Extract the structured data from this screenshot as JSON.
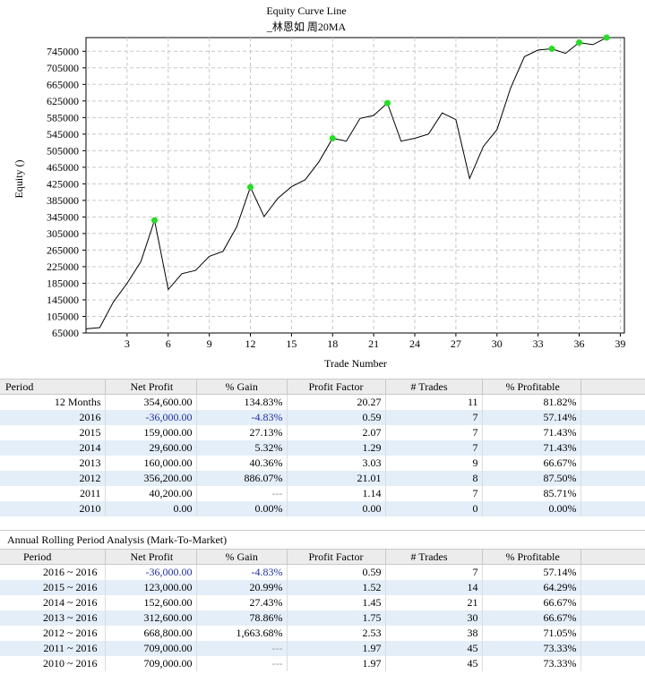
{
  "chart_data": {
    "type": "line",
    "title": "Equity Curve Line",
    "subtitle": "_林恩如 周20MA",
    "xlabel": "Trade Number",
    "ylabel": "Equity ()",
    "xlim": [
      0,
      39.3
    ],
    "ylim": [
      65000,
      778000
    ],
    "xticks": [
      3,
      6,
      9,
      12,
      15,
      18,
      21,
      24,
      27,
      30,
      33,
      36,
      39
    ],
    "yticks": [
      65000,
      105000,
      145000,
      185000,
      225000,
      265000,
      305000,
      345000,
      385000,
      425000,
      465000,
      505000,
      545000,
      585000,
      625000,
      665000,
      705000,
      745000
    ],
    "grid": true,
    "x": [
      0,
      1,
      2,
      3,
      4,
      5,
      6,
      7,
      8,
      9,
      10,
      11,
      12,
      13,
      14,
      15,
      16,
      17,
      18,
      19,
      20,
      21,
      22,
      23,
      24,
      25,
      26,
      27,
      28,
      29,
      30,
      31,
      32,
      33,
      34,
      35,
      36,
      37,
      38,
      39
    ],
    "values": [
      75000,
      78000,
      140000,
      185000,
      237000,
      337000,
      170000,
      208000,
      216000,
      250000,
      262000,
      321000,
      417000,
      346000,
      390000,
      418000,
      435000,
      478000,
      535000,
      528000,
      583000,
      590000,
      620000,
      528000,
      535000,
      545000,
      596000,
      580000,
      438000,
      515000,
      556000,
      657000,
      732000,
      748000,
      751000,
      740000,
      766000,
      761000,
      778000,
      778000
    ],
    "new_high_points": [
      5,
      12,
      18,
      22,
      34,
      36,
      38
    ]
  },
  "table1": {
    "headers": [
      "Period",
      "Net Profit",
      "% Gain",
      "Profit Factor",
      "# Trades",
      "% Profitable"
    ],
    "rows": [
      {
        "period": "12 Months",
        "net": "354,600.00",
        "gain": "134.83%",
        "pf": "20.27",
        "trades": "11",
        "prof": "81.82%"
      },
      {
        "period": "2016",
        "net": "-36,000.00",
        "gain": "-4.83%",
        "pf": "0.59",
        "trades": "7",
        "prof": "57.14%"
      },
      {
        "period": "2015",
        "net": "159,000.00",
        "gain": "27.13%",
        "pf": "2.07",
        "trades": "7",
        "prof": "71.43%"
      },
      {
        "period": "2014",
        "net": "29,600.00",
        "gain": "5.32%",
        "pf": "1.29",
        "trades": "7",
        "prof": "71.43%"
      },
      {
        "period": "2013",
        "net": "160,000.00",
        "gain": "40.36%",
        "pf": "3.03",
        "trades": "9",
        "prof": "66.67%"
      },
      {
        "period": "2012",
        "net": "356,200.00",
        "gain": "886.07%",
        "pf": "21.01",
        "trades": "8",
        "prof": "87.50%"
      },
      {
        "period": "2011",
        "net": "40,200.00",
        "gain": "---",
        "pf": "1.14",
        "trades": "7",
        "prof": "85.71%"
      },
      {
        "period": "2010",
        "net": "0.00",
        "gain": "0.00%",
        "pf": "0.00",
        "trades": "0",
        "prof": "0.00%"
      }
    ]
  },
  "table2": {
    "caption": "Annual Rolling Period Analysis (Mark-To-Market)",
    "headers": [
      "Period",
      "Net Profit",
      "% Gain",
      "Profit Factor",
      "# Trades",
      "% Profitable"
    ],
    "rows": [
      {
        "period": "2016 ~ 2016",
        "net": "-36,000.00",
        "gain": "-4.83%",
        "pf": "0.59",
        "trades": "7",
        "prof": "57.14%"
      },
      {
        "period": "2015 ~ 2016",
        "net": "123,000.00",
        "gain": "20.99%",
        "pf": "1.52",
        "trades": "14",
        "prof": "64.29%"
      },
      {
        "period": "2014 ~ 2016",
        "net": "152,600.00",
        "gain": "27.43%",
        "pf": "1.45",
        "trades": "21",
        "prof": "66.67%"
      },
      {
        "period": "2013 ~ 2016",
        "net": "312,600.00",
        "gain": "78.86%",
        "pf": "1.75",
        "trades": "30",
        "prof": "66.67%"
      },
      {
        "period": "2012 ~ 2016",
        "net": "668,800.00",
        "gain": "1,663.68%",
        "pf": "2.53",
        "trades": "38",
        "prof": "71.05%"
      },
      {
        "period": "2011 ~ 2016",
        "net": "709,000.00",
        "gain": "---",
        "pf": "1.97",
        "trades": "45",
        "prof": "73.33%"
      },
      {
        "period": "2010 ~ 2016",
        "net": "709,000.00",
        "gain": "---",
        "pf": "1.97",
        "trades": "45",
        "prof": "73.33%"
      }
    ]
  },
  "colors": {
    "line": "#000000",
    "marker": "#22e022",
    "negative": "#1f2fa8",
    "alt_row": "#e4eef9",
    "header_bg": "#ececec"
  }
}
